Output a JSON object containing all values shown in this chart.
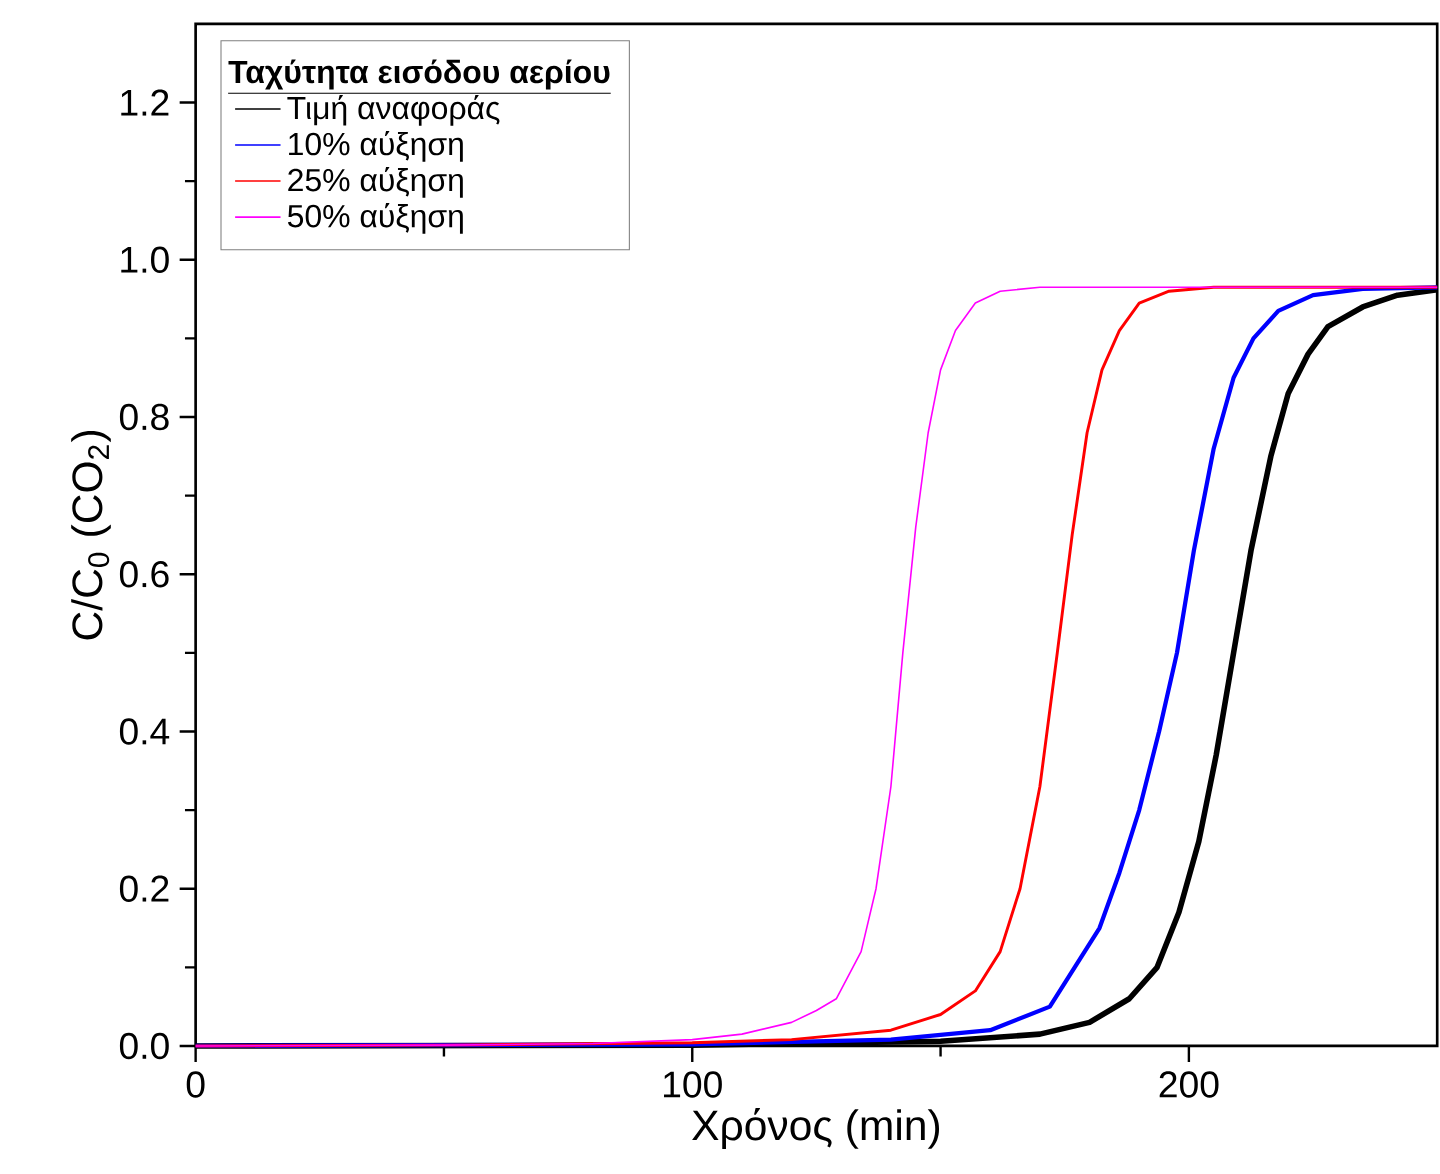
{
  "chart_data": {
    "type": "line",
    "xlabel": "Χρόνος (min)",
    "ylabel": "C/C$_{0}$ (CO$_{2}$)",
    "legend_title": "Ταχύτητα εισόδου αερίου",
    "xlim": [
      0,
      250
    ],
    "ylim": [
      0,
      1.3
    ],
    "xticks": [
      0,
      100,
      200
    ],
    "yticks": [
      {
        "value": 0,
        "label": "0.0"
      },
      0.2,
      0.4,
      0.6,
      0.8,
      {
        "value": 1,
        "label": "1.0"
      },
      1.2
    ],
    "legend": "top left",
    "grid": false,
    "marker": "none",
    "line_style": "solid",
    "series": [
      {
        "name": "Τιμή αναφοράς",
        "color": "#000000",
        "x": [
          0,
          100,
          150,
          170,
          180,
          188,
          193.6,
          198,
          202,
          205.5,
          209,
          212.5,
          216.5,
          220,
          224,
          228,
          235,
          242,
          250
        ],
        "values": [
          0,
          0.001,
          0.006,
          0.015,
          0.03,
          0.06,
          0.1,
          0.17,
          0.26,
          0.37,
          0.5,
          0.63,
          0.75,
          0.83,
          0.88,
          0.915,
          0.94,
          0.955,
          0.962
        ]
      },
      {
        "name": "10% αύξηση",
        "color": "#0000ff",
        "x": [
          0,
          100,
          140,
          160,
          172,
          177,
          182,
          186,
          190,
          194,
          197.6,
          201,
          205,
          209,
          213,
          218,
          225,
          235,
          250
        ],
        "values": [
          0,
          0.002,
          0.008,
          0.02,
          0.05,
          0.1,
          0.15,
          0.22,
          0.3,
          0.4,
          0.5,
          0.63,
          0.76,
          0.85,
          0.9,
          0.935,
          0.955,
          0.963,
          0.965
        ]
      },
      {
        "name": "25% αύξηση",
        "color": "#ff0000",
        "x": [
          0,
          50,
          100,
          120,
          140,
          150,
          157,
          162,
          166,
          170,
          173.5,
          176.5,
          179.5,
          182.5,
          186,
          190,
          196,
          205,
          250
        ],
        "values": [
          0,
          0.001,
          0.004,
          0.008,
          0.02,
          0.04,
          0.07,
          0.12,
          0.2,
          0.33,
          0.5,
          0.65,
          0.78,
          0.86,
          0.91,
          0.945,
          0.96,
          0.965,
          0.965
        ]
      },
      {
        "name": "50% αύξηση",
        "color": "#ff00ff",
        "x": [
          0,
          50,
          80,
          100,
          110,
          120,
          125,
          129,
          134,
          137,
          140,
          142.4,
          145,
          147.5,
          150,
          153,
          157,
          162,
          170,
          250
        ],
        "values": [
          0,
          0.001,
          0.003,
          0.008,
          0.015,
          0.03,
          0.045,
          0.06,
          0.12,
          0.2,
          0.33,
          0.5,
          0.66,
          0.78,
          0.86,
          0.91,
          0.945,
          0.96,
          0.965,
          0.965
        ]
      }
    ]
  }
}
